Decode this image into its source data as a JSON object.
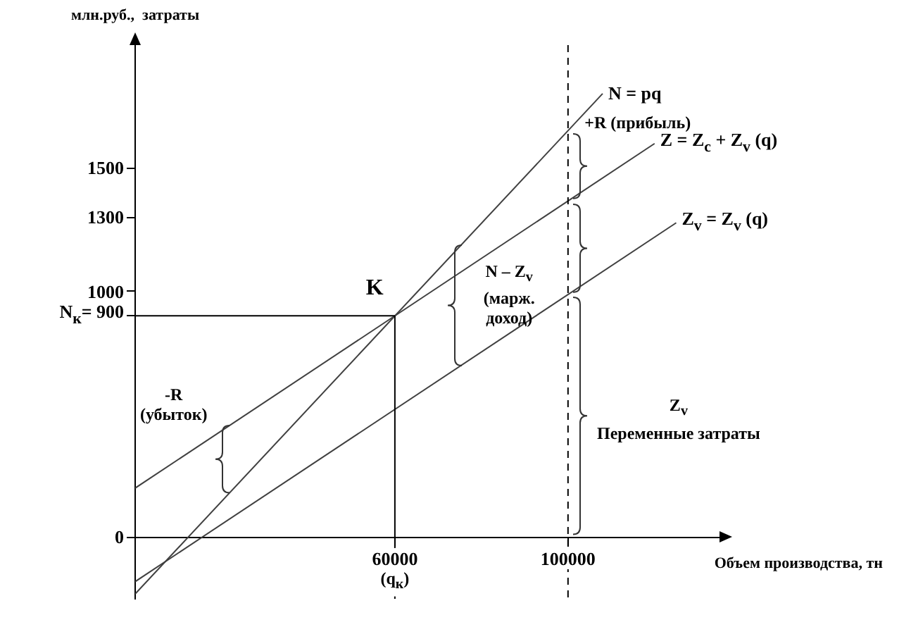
{
  "chart_data": {
    "type": "line",
    "ylabel": "млн.руб.,  затраты",
    "xlabel": "Объем производства, тн",
    "xlim": [
      0,
      135000
    ],
    "ylim": [
      -250,
      2000
    ],
    "xticks": [
      60000,
      100000
    ],
    "yticks": [
      0,
      {
        "value": 900,
        "label": "N$_{к}$= 900"
      },
      1000,
      1300,
      1500
    ],
    "series": [
      {
        "name": "N = pq",
        "color": "#404040",
        "x": [
          0,
          108000
        ],
        "values": [
          -230,
          1803
        ]
      },
      {
        "name": "Z = Z$_{c}$ + Z$_{v}$ (q)",
        "color": "#404040",
        "x": [
          0,
          120000
        ],
        "values": [
          200,
          1600
        ]
      },
      {
        "name": "Z$_{v}$ = Z$_{v}$ (q)",
        "color": "#404040",
        "x": [
          0,
          125000
        ],
        "values": [
          -180,
          1278
        ]
      }
    ],
    "ref_lines": [
      {
        "axis": "y",
        "value": 900,
        "color": "#000000"
      },
      {
        "axis": "x",
        "value": 60000,
        "color": "#000000"
      },
      {
        "axis": "x",
        "value": 100000,
        "color": "#000000",
        "line_style": "dashed"
      }
    ],
    "annotations": [
      "K",
      {
        "text": "+R (прибыль)",
        "x": 100000,
        "y": 1510
      },
      "N – Z$_{v}$\n(марж.\nдоход)",
      "Z$_{v}$\nПеременные затраты",
      "-R\n(убыток)",
      {
        "text": "(q$_{к}$)",
        "x": 60000,
        "y": -160
      }
    ]
  }
}
